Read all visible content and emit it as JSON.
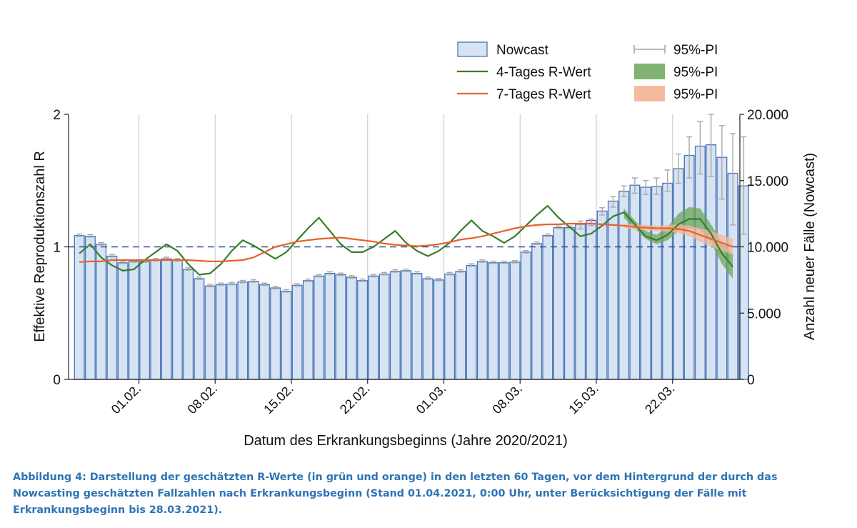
{
  "chart_data": {
    "type": "bar+line",
    "left_axis": {
      "label": "Effektive Reproduktionszahl R",
      "ylim": [
        0,
        2
      ],
      "ticks": [
        0,
        1,
        2
      ],
      "tick_labels": [
        "0",
        "1",
        "2"
      ]
    },
    "right_axis": {
      "label": "Anzahl neuer Fälle (Nowcast)",
      "ylim": [
        0,
        20000
      ],
      "ticks": [
        0,
        5000,
        10000,
        15000,
        20000
      ],
      "tick_labels": [
        "0",
        "5.000",
        "10.000",
        "15.000",
        "20.000"
      ]
    },
    "xlabel": "Datum des Erkrankungsbeginns (Jahre 2020/2021)",
    "x_ticks": [
      {
        "label": "01.02.",
        "index": 6
      },
      {
        "label": "08.02.",
        "index": 13
      },
      {
        "label": "15.02.",
        "index": 20
      },
      {
        "label": "22.02.",
        "index": 27
      },
      {
        "label": "01.03.",
        "index": 34
      },
      {
        "label": "08.03.",
        "index": 41
      },
      {
        "label": "15.03.",
        "index": 48
      },
      {
        "label": "22.03.",
        "index": 55
      }
    ],
    "reference_line": {
      "value": 1,
      "style": "dashed"
    },
    "nowcast_bars": {
      "name": "Nowcast",
      "values": [
        10850,
        10800,
        10200,
        9300,
        8800,
        8900,
        8900,
        9000,
        9100,
        9000,
        8300,
        7600,
        7050,
        7150,
        7200,
        7350,
        7400,
        7150,
        6900,
        6650,
        7100,
        7450,
        7800,
        8000,
        7900,
        7700,
        7450,
        7800,
        7950,
        8150,
        8200,
        8000,
        7600,
        7500,
        7950,
        8150,
        8600,
        8900,
        8800,
        8800,
        8850,
        9600,
        10250,
        10850,
        11450,
        11450,
        11700,
        12000,
        12700,
        13450,
        14200,
        14650,
        14500,
        14550,
        14800,
        15900,
        16900,
        17600,
        17700,
        16750,
        15550,
        14600
      ],
      "pi_upper": [
        null,
        null,
        null,
        null,
        null,
        null,
        null,
        null,
        null,
        null,
        null,
        null,
        null,
        null,
        null,
        null,
        null,
        null,
        null,
        null,
        null,
        null,
        null,
        null,
        null,
        null,
        null,
        null,
        null,
        null,
        null,
        null,
        null,
        null,
        null,
        null,
        null,
        null,
        null,
        null,
        null,
        null,
        null,
        null,
        null,
        null,
        11950,
        12100,
        12950,
        13800,
        14600,
        15200,
        15000,
        15200,
        15800,
        17000,
        18300,
        19450,
        20000,
        19150,
        18550,
        18300
      ],
      "pi_lower": [
        null,
        null,
        null,
        null,
        null,
        null,
        null,
        null,
        null,
        null,
        null,
        null,
        null,
        null,
        null,
        null,
        null,
        null,
        null,
        null,
        null,
        null,
        null,
        null,
        null,
        null,
        null,
        null,
        null,
        null,
        null,
        null,
        null,
        null,
        null,
        null,
        null,
        null,
        null,
        null,
        null,
        null,
        null,
        null,
        null,
        null,
        11350,
        11600,
        12400,
        13000,
        13800,
        14050,
        13950,
        13950,
        14200,
        14800,
        15200,
        15500,
        15300,
        13600,
        11650,
        10950
      ]
    },
    "series": [
      {
        "name": "4-Tages R-Wert",
        "color": "#3a7d2c",
        "values": [
          0.95,
          1.02,
          0.92,
          0.86,
          0.82,
          0.83,
          0.9,
          0.96,
          1.02,
          0.97,
          0.87,
          0.79,
          0.8,
          0.87,
          0.97,
          1.05,
          1.01,
          0.96,
          0.91,
          0.96,
          1.05,
          1.14,
          1.22,
          1.12,
          1.02,
          0.96,
          0.96,
          1.0,
          1.06,
          1.12,
          1.03,
          0.97,
          0.93,
          0.97,
          1.03,
          1.12,
          1.2,
          1.12,
          1.08,
          1.03,
          1.08,
          1.16,
          1.24,
          1.31,
          1.22,
          1.15,
          1.08,
          1.1,
          1.16,
          1.23,
          1.26,
          1.17,
          1.08,
          1.05,
          1.09,
          1.17,
          1.21,
          1.21,
          1.1,
          0.95,
          0.85
        ]
      },
      {
        "name": "7-Tages R-Wert",
        "color": "#e8612c",
        "values": [
          0.885,
          0.89,
          0.89,
          0.9,
          0.9,
          0.9,
          0.9,
          0.9,
          0.9,
          0.9,
          0.9,
          0.895,
          0.89,
          0.89,
          0.895,
          0.9,
          0.92,
          0.96,
          1.0,
          1.02,
          1.04,
          1.05,
          1.06,
          1.065,
          1.07,
          1.06,
          1.05,
          1.04,
          1.025,
          1.015,
          1.01,
          1.005,
          1.01,
          1.02,
          1.035,
          1.055,
          1.065,
          1.08,
          1.1,
          1.12,
          1.14,
          1.155,
          1.165,
          1.17,
          1.17,
          1.175,
          1.175,
          1.175,
          1.17,
          1.165,
          1.16,
          1.15,
          1.145,
          1.14,
          1.14,
          1.135,
          1.12,
          1.09,
          1.06,
          1.03,
          1.0
        ]
      }
    ],
    "pi_bands": [
      {
        "series": "4-Tages R-Wert",
        "color": "#6aa55b",
        "start_index": 50,
        "lower": [
          1.22,
          1.14,
          1.06,
          1.02,
          1.05,
          1.12,
          1.14,
          1.13,
          1.03,
          0.87,
          0.76
        ],
        "upper": [
          1.29,
          1.2,
          1.12,
          1.09,
          1.15,
          1.25,
          1.3,
          1.29,
          1.17,
          1.03,
          0.95
        ]
      },
      {
        "series": "7-Tages R-Wert",
        "color": "#f4b799",
        "start_index": 50,
        "lower": [
          1.145,
          1.13,
          1.125,
          1.12,
          1.115,
          1.105,
          1.08,
          1.04,
          1.0,
          0.97,
          0.94
        ],
        "upper": [
          1.175,
          1.17,
          1.165,
          1.16,
          1.165,
          1.17,
          1.16,
          1.14,
          1.12,
          1.09,
          1.06
        ]
      }
    ],
    "legend": {
      "position": "top-right",
      "items": [
        {
          "label": "Nowcast",
          "kind": "bar"
        },
        {
          "label": "4-Tages R-Wert",
          "kind": "line",
          "color": "#3a7d2c"
        },
        {
          "label": "7-Tages R-Wert",
          "kind": "line",
          "color": "#e8612c"
        },
        {
          "label": "95%-PI",
          "kind": "errorbar"
        },
        {
          "label": "95%-PI",
          "kind": "band",
          "color": "#6aa55b"
        },
        {
          "label": "95%-PI",
          "kind": "band",
          "color": "#f4b799"
        }
      ]
    },
    "grid": "vertical at x ticks"
  },
  "caption": "Abbildung 4: Darstellung der geschätzten R-Werte (in grün und orange) in den letzten 60 Tagen, vor dem Hintergrund der durch das Nowcasting geschätzten Fallzahlen nach Erkrankungsbeginn (Stand 01.04.2021, 0:00 Uhr, unter Berücksichtigung der Fälle mit Erkrankungsbeginn bis 28.03.2021).",
  "colors": {
    "bar_fill": "#d6e3f2",
    "bar_stroke": "#4a74b8",
    "ref_line": "#2a4f9a",
    "caption": "#2e74b5",
    "grid": "#cfcfcf",
    "pi_gray": "#a8a8a8"
  }
}
